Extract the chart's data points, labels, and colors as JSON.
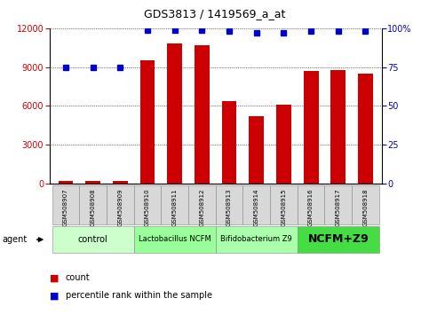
{
  "title": "GDS3813 / 1419569_a_at",
  "samples": [
    "GSM508907",
    "GSM508908",
    "GSM508909",
    "GSM508910",
    "GSM508911",
    "GSM508912",
    "GSM508913",
    "GSM508914",
    "GSM508915",
    "GSM508916",
    "GSM508917",
    "GSM508918"
  ],
  "counts": [
    200,
    180,
    220,
    9500,
    10800,
    10700,
    6400,
    5200,
    6100,
    8700,
    8800,
    8500
  ],
  "percentile_ranks": [
    75,
    75,
    75,
    99,
    99,
    99,
    98,
    97,
    97,
    98,
    98,
    98
  ],
  "bar_color": "#cc0000",
  "dot_color": "#0000cc",
  "ylim_left": [
    0,
    12000
  ],
  "ylim_right": [
    0,
    100
  ],
  "yticks_left": [
    0,
    3000,
    6000,
    9000,
    12000
  ],
  "yticks_right": [
    0,
    25,
    50,
    75,
    100
  ],
  "groups": [
    {
      "label": "control",
      "start": 0,
      "end": 3,
      "color": "#ccffcc"
    },
    {
      "label": "Lactobacillus NCFM",
      "start": 3,
      "end": 6,
      "color": "#99ff99"
    },
    {
      "label": "Bifidobacterium Z9",
      "start": 6,
      "end": 9,
      "color": "#aaffaa"
    },
    {
      "label": "NCFM+Z9",
      "start": 9,
      "end": 12,
      "color": "#44dd44"
    }
  ],
  "legend_count_label": "count",
  "legend_pct_label": "percentile rank within the sample",
  "agent_label": "agent",
  "background_color": "#ffffff",
  "tick_label_color_left": "#cc0000",
  "tick_label_color_right": "#0000cc",
  "group_fontsize": [
    7,
    6,
    6,
    9
  ],
  "group_fontweight": [
    "normal",
    "normal",
    "normal",
    "bold"
  ]
}
